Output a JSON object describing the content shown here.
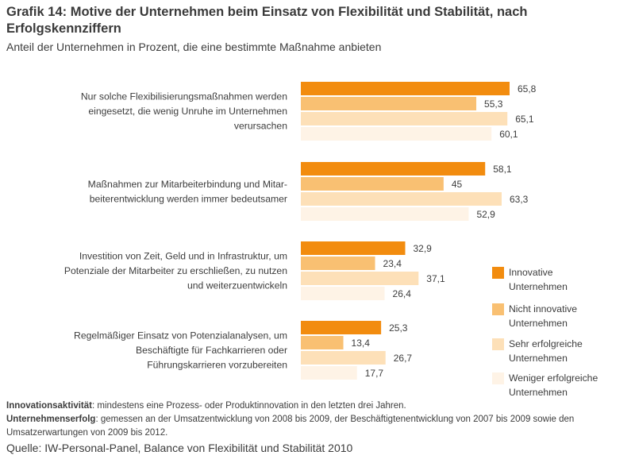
{
  "chart_data": {
    "type": "bar",
    "orientation": "horizontal",
    "title": "Grafik 14: Motive der Unternehmen beim Einsatz von Flexibilität und Stabilität, nach Erfolgskennziffern",
    "subtitle": "Anteil der Unternehmen in Prozent, die eine bestimmte Maßnahme anbieten",
    "categories": [
      [
        "Nur solche Flexibilisierungsmaßnahmen werden",
        "eingesetzt, die wenig Unruhe im Unternehmen",
        "verursachen"
      ],
      [
        "Maßnahmen zur Mitarbeiterbindung und Mitar-",
        "beiterentwicklung werden immer bedeutsamer"
      ],
      [
        "Investition von Zeit, Geld und in Infrastruktur, um",
        "Potenziale der Mitarbeiter zu erschließen, zu nutzen",
        "und weiterzuentwickeln"
      ],
      [
        "Regelmäßiger Einsatz von Potenzialanalysen, um",
        "Beschäftigte für Fachkarrieren oder",
        "Führungskarrieren vorzubereiten"
      ]
    ],
    "series": [
      {
        "name": [
          "Innovative",
          "Unternehmen"
        ],
        "color": "#f28c0f",
        "values": [
          65.8,
          58.1,
          32.9,
          25.3
        ],
        "labels": [
          "65,8",
          "58,1",
          "32,9",
          "25,3"
        ]
      },
      {
        "name": [
          "Nicht innovative",
          "Unternehmen"
        ],
        "color": "#f9c072",
        "values": [
          55.3,
          45,
          23.4,
          13.4
        ],
        "labels": [
          "55,3",
          "45",
          "23,4",
          "13,4"
        ]
      },
      {
        "name": [
          "Sehr erfolgreiche",
          "Unternehmen"
        ],
        "color": "#fde0b8",
        "values": [
          65.1,
          63.3,
          37.1,
          26.7
        ],
        "labels": [
          "65,1",
          "63,3",
          "37,1",
          "26,7"
        ]
      },
      {
        "name": [
          "Weniger erfolgreiche",
          "Unternehmen"
        ],
        "color": "#fef3e6",
        "values": [
          60.1,
          52.9,
          26.4,
          17.7
        ],
        "labels": [
          "60,1",
          "52,9",
          "26,4",
          "17,7"
        ]
      }
    ],
    "xlim": [
      0,
      100
    ],
    "grid": false,
    "legend": "bottom-right"
  },
  "notes": {
    "line1_bold": "Innovationsaktivität",
    "line1_text": ": mindestens eine Prozess- oder Produktinnovation in den letzten drei Jahren.",
    "line2_bold": "Unternehmenserfolg",
    "line2_text": ": gemessen an der Umsatzentwicklung von 2008 bis 2009, der Beschäftigtenentwicklung von 2007 bis 2009 sowie den Umsatzerwartungen von 2009 bis 2012."
  },
  "source": "Quelle: IW-Personal-Panel, Balance von Flexibilität und Stabilität 2010"
}
